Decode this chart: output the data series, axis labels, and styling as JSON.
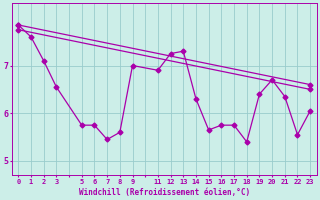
{
  "xlabel": "Windchill (Refroidissement éolien,°C)",
  "background_color": "#cceee8",
  "line_color": "#aa00aa",
  "grid_color": "#99cccc",
  "ylim": [
    4.7,
    8.3
  ],
  "xlim": [
    -0.5,
    23.5
  ],
  "yticks": [
    5,
    6,
    7
  ],
  "xtick_labels": [
    "0",
    "1",
    "2",
    "3",
    "",
    "5",
    "6",
    "7",
    "8",
    "9",
    "",
    "11",
    "12",
    "13",
    "14",
    "15",
    "16",
    "17",
    "18",
    "19",
    "20",
    "21",
    "22",
    "23"
  ],
  "series_straight1": {
    "x": [
      0,
      23
    ],
    "y": [
      7.85,
      6.6
    ]
  },
  "series_straight2": {
    "x": [
      0,
      23
    ],
    "y": [
      7.75,
      6.5
    ]
  },
  "series_zigzag": {
    "x": [
      0,
      1,
      2,
      3,
      5,
      6,
      7,
      8,
      9,
      11,
      12,
      13,
      14,
      15,
      16,
      17,
      18,
      19,
      20,
      21,
      22,
      23
    ],
    "y": [
      7.85,
      7.6,
      7.1,
      6.55,
      5.75,
      5.75,
      5.45,
      5.6,
      7.0,
      6.9,
      7.25,
      7.3,
      6.3,
      5.65,
      5.75,
      5.75,
      5.4,
      6.4,
      6.7,
      6.35,
      5.55,
      6.05
    ]
  },
  "marker": "D",
  "markersize": 2.5,
  "linewidth": 0.9,
  "tick_fontsize": 5.0,
  "label_fontsize": 5.5
}
